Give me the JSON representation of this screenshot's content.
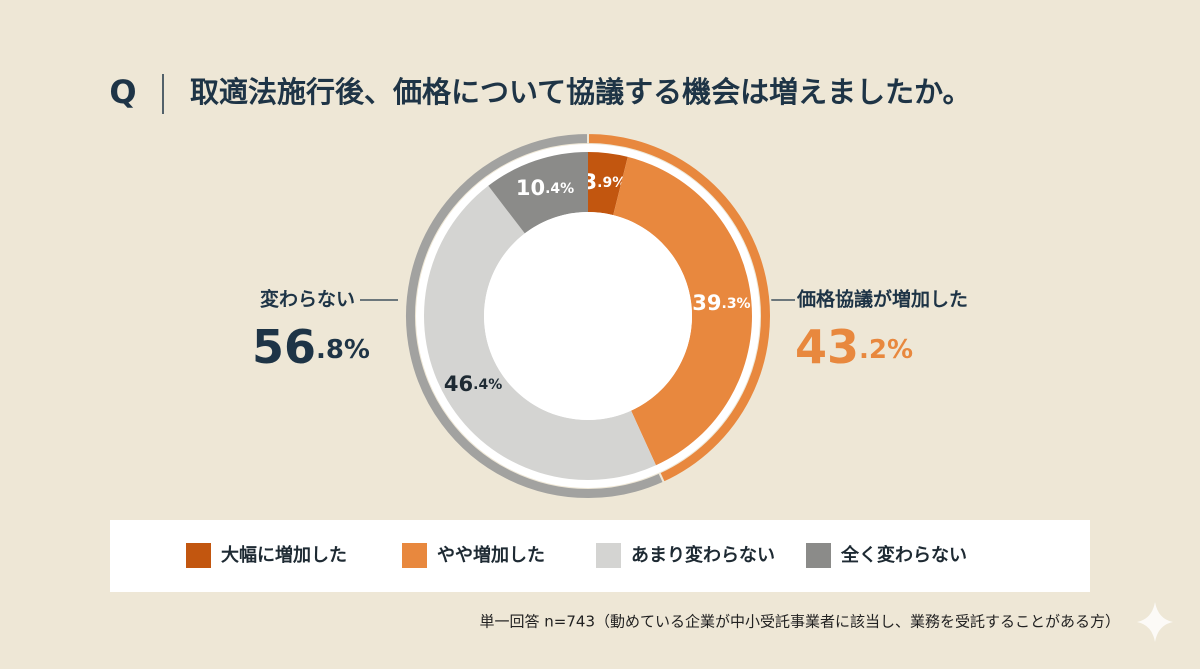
{
  "chart_data": {
    "type": "donut",
    "title_prefix": "Q",
    "title": "取適法施行後、価格について協議する機会は増えましたか。",
    "categories": [
      "大幅に増加した",
      "やや増加した",
      "あまり変わらない",
      "全く変わらない"
    ],
    "values": [
      3.9,
      39.3,
      46.4,
      10.4
    ],
    "value_labels": [
      "3.9%",
      "39.3%",
      "46.4%",
      "10.4%"
    ],
    "colors": [
      "#c2560f",
      "#e8883e",
      "#d4d4d2",
      "#8b8b89"
    ],
    "groups": [
      {
        "name": "価格協議が増加した",
        "value": 43.2,
        "value_label": "43.2%",
        "color": "#e8883e"
      },
      {
        "name": "変わらない",
        "value": 56.8,
        "value_label": "56.8%",
        "color": "#a2a2a0"
      }
    ],
    "footnote": "単一回答 n=743（動めている企業が中小受託事業者に該当し、業務を受託することがある方）"
  }
}
